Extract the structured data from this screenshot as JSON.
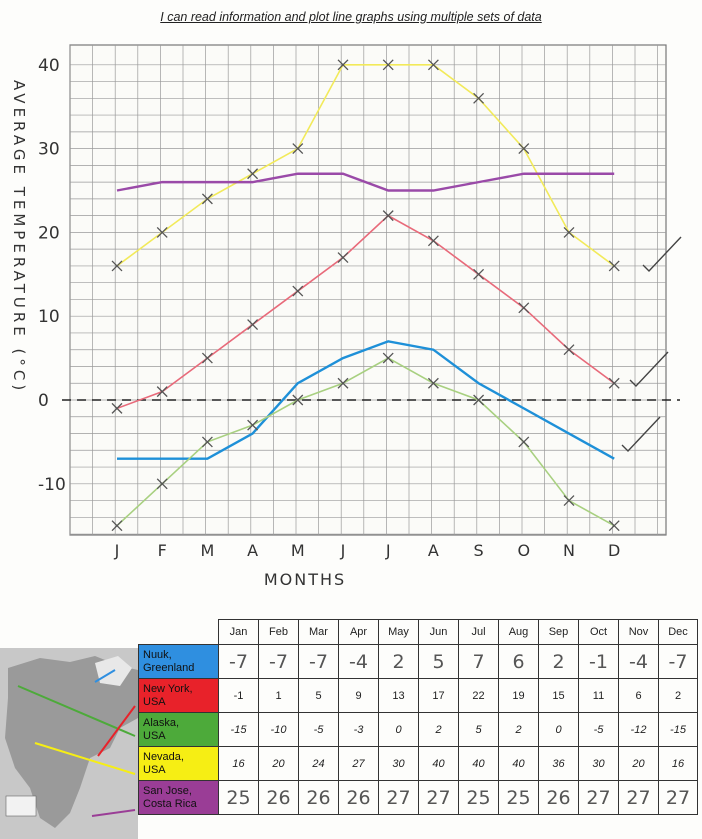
{
  "title": "I can read information and plot line graphs using multiple sets of data",
  "chart_data": {
    "type": "line",
    "categories": [
      "J",
      "F",
      "M",
      "A",
      "M",
      "J",
      "J",
      "A",
      "S",
      "O",
      "N",
      "D"
    ],
    "ylabel": "AVERAGE TEMPERATURE (°C)",
    "xlabel": "MONTHS",
    "ylim": [
      -16,
      41
    ],
    "yticks": [
      40,
      30,
      20,
      10,
      0,
      -10
    ],
    "ytick_labels": [
      "40",
      "30",
      "20",
      "10",
      "0",
      "-10"
    ],
    "grid": true,
    "series": [
      {
        "name": "Nuuk, Greenland",
        "color": "#1e90d8",
        "values": [
          -7,
          -7,
          -7,
          -4,
          2,
          5,
          7,
          6,
          2,
          -1,
          -4,
          -7
        ]
      },
      {
        "name": "New York, USA",
        "color": "#e86a7a",
        "values": [
          -1,
          1,
          5,
          9,
          13,
          17,
          22,
          19,
          15,
          11,
          6,
          2
        ]
      },
      {
        "name": "Alaska, USA",
        "color": "#a8d080",
        "values": [
          -15,
          -10,
          -5,
          -3,
          0,
          2,
          5,
          2,
          0,
          -5,
          -12,
          -15
        ]
      },
      {
        "name": "Nevada, USA",
        "color": "#f2ea5a",
        "values": [
          16,
          20,
          24,
          27,
          30,
          40,
          40,
          40,
          36,
          30,
          20,
          16
        ]
      },
      {
        "name": "San Jose, Costa Rica",
        "color": "#9a4aa8",
        "values": [
          25,
          26,
          26,
          26,
          27,
          27,
          25,
          25,
          26,
          27,
          27,
          27
        ]
      }
    ]
  },
  "table": {
    "months": [
      "Jan",
      "Feb",
      "Mar",
      "Apr",
      "May",
      "Jun",
      "Jul",
      "Aug",
      "Sep",
      "Oct",
      "Nov",
      "Dec"
    ],
    "rows": [
      {
        "label_1": "Nuuk,",
        "label_2": "Greenland",
        "color": "#2f8fe0",
        "style": "big",
        "values": [
          "-7",
          "-7",
          "-7",
          "-4",
          "2",
          "5",
          "7",
          "6",
          "2",
          "-1",
          "-4",
          "-7"
        ]
      },
      {
        "label_1": "New York,",
        "label_2": "USA",
        "color": "#e8222a",
        "style": "plain",
        "values": [
          "-1",
          "1",
          "5",
          "9",
          "13",
          "17",
          "22",
          "19",
          "15",
          "11",
          "6",
          "2"
        ]
      },
      {
        "label_1": "Alaska,",
        "label_2": "USA",
        "color": "#4daa3a",
        "style": "ital",
        "values": [
          "-15",
          "-10",
          "-5",
          "-3",
          "0",
          "2",
          "5",
          "2",
          "0",
          "-5",
          "-12",
          "-15"
        ]
      },
      {
        "label_1": "Nevada,",
        "label_2": "USA",
        "color": "#f6ee14",
        "style": "ital",
        "values": [
          "16",
          "20",
          "24",
          "27",
          "30",
          "40",
          "40",
          "40",
          "36",
          "30",
          "20",
          "16"
        ]
      },
      {
        "label_1": "San Jose,",
        "label_2": "Costa Rica",
        "color": "#9a3d96",
        "style": "big",
        "values": [
          "25",
          "26",
          "26",
          "26",
          "27",
          "27",
          "25",
          "25",
          "26",
          "27",
          "27",
          "27"
        ]
      }
    ]
  }
}
